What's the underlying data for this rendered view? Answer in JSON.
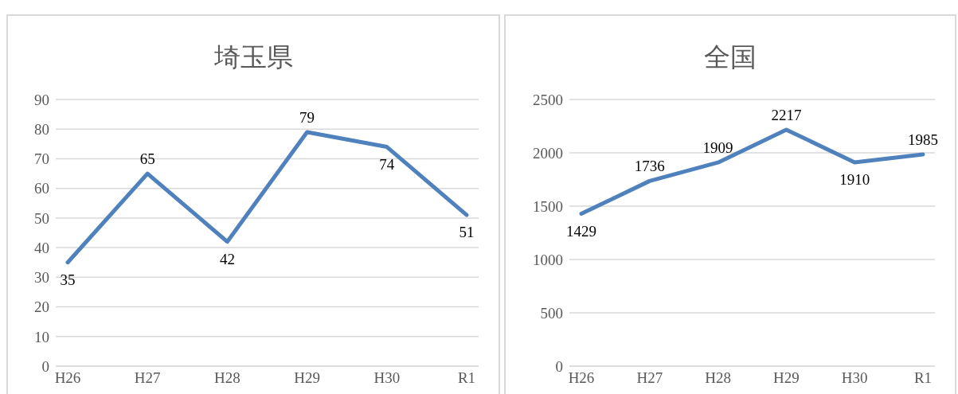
{
  "chart_data": [
    {
      "type": "line",
      "title": "埼玉県",
      "categories": [
        "H26",
        "H27",
        "H28",
        "H29",
        "H30",
        "R1"
      ],
      "series": [
        {
          "color": "#4f81bd",
          "values": [
            35,
            65,
            42,
            79,
            74,
            51
          ]
        }
      ],
      "ylim": [
        0,
        90
      ],
      "yticks": [
        0,
        10,
        20,
        30,
        40,
        50,
        60,
        70,
        80,
        90
      ],
      "grid": "y",
      "data_labels": true,
      "legend": false,
      "marker": "none"
    },
    {
      "type": "line",
      "title": "全国",
      "categories": [
        "H26",
        "H27",
        "H28",
        "H29",
        "H30",
        "R1"
      ],
      "series": [
        {
          "color": "#4f81bd",
          "values": [
            1429,
            1736,
            1909,
            2217,
            1910,
            1985
          ]
        }
      ],
      "ylim": [
        0,
        2500
      ],
      "yticks": [
        0,
        500,
        1000,
        1500,
        2000,
        2500
      ],
      "grid": "y",
      "data_labels": true,
      "legend": false,
      "marker": "none"
    }
  ]
}
